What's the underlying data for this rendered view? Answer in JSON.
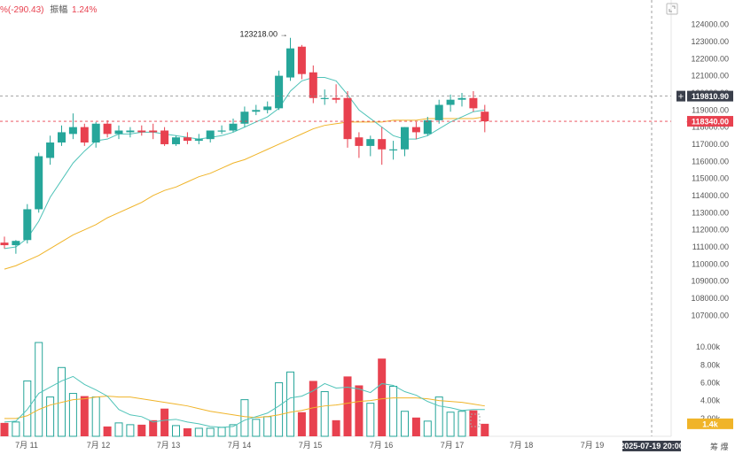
{
  "header": {
    "change": "%(-290.43)",
    "amplitude_label": "振幅",
    "amplitude": "1.24%"
  },
  "annotations": {
    "high_label": "123218.00 →"
  },
  "crosshair": {
    "price_label": "119810.90",
    "time_label": "2025-07-19 20:00"
  },
  "current_price_label": "118340.00",
  "volume_now_label": "1.4k",
  "chips_label": "筹 爆",
  "colors": {
    "up": "#26a69a",
    "down": "#e8414f",
    "ma_fast": "#4fc3b8",
    "ma_slow": "#f0b429"
  },
  "chart_data": {
    "type": "candlestick",
    "y_ticks": [
      "124000.00",
      "123000.00",
      "122000.00",
      "121000.00",
      "120000.00",
      "119000.00",
      "118000.00",
      "117000.00",
      "116000.00",
      "115000.00",
      "114000.00",
      "113000.00",
      "112000.00",
      "111000.00",
      "110000.00",
      "109000.00",
      "108000.00",
      "107000.00"
    ],
    "x_ticks": [
      "7月 11",
      "7月 12",
      "7月 13",
      "7月 14",
      "7月 15",
      "7月 16",
      "7月 17",
      "7月 18",
      "7月 19"
    ],
    "volume_ticks": [
      "10.00k",
      "8.00k",
      "6.00k",
      "4.00k",
      "2.00k"
    ],
    "ylim": [
      106500,
      124600
    ],
    "volume_ylim": [
      0,
      10800
    ],
    "candles": [
      {
        "o": 111250,
        "h": 111600,
        "l": 110900,
        "c": 111100,
        "v": 1500
      },
      {
        "o": 111100,
        "h": 111400,
        "l": 110600,
        "c": 111350,
        "v": 1600
      },
      {
        "o": 111400,
        "h": 113500,
        "l": 111200,
        "c": 113200,
        "v": 6200
      },
      {
        "o": 113200,
        "h": 116500,
        "l": 113000,
        "c": 116300,
        "v": 10500
      },
      {
        "o": 116200,
        "h": 117500,
        "l": 115800,
        "c": 117100,
        "v": 4400
      },
      {
        "o": 117100,
        "h": 118100,
        "l": 116900,
        "c": 117700,
        "v": 7700
      },
      {
        "o": 117600,
        "h": 118800,
        "l": 117300,
        "c": 118000,
        "v": 4800
      },
      {
        "o": 118000,
        "h": 118200,
        "l": 116900,
        "c": 117100,
        "v": 4500
      },
      {
        "o": 117100,
        "h": 118300,
        "l": 116800,
        "c": 118200,
        "v": 4400
      },
      {
        "o": 118200,
        "h": 118400,
        "l": 117400,
        "c": 117600,
        "v": 1100
      },
      {
        "o": 117600,
        "h": 118100,
        "l": 117300,
        "c": 117800,
        "v": 1500
      },
      {
        "o": 117700,
        "h": 118000,
        "l": 117400,
        "c": 117800,
        "v": 1300
      },
      {
        "o": 117800,
        "h": 118100,
        "l": 117500,
        "c": 117700,
        "v": 1300
      },
      {
        "o": 117800,
        "h": 118200,
        "l": 117300,
        "c": 117700,
        "v": 1800
      },
      {
        "o": 117800,
        "h": 118000,
        "l": 116900,
        "c": 117000,
        "v": 3100
      },
      {
        "o": 117000,
        "h": 117500,
        "l": 116900,
        "c": 117400,
        "v": 1200
      },
      {
        "o": 117400,
        "h": 117700,
        "l": 117000,
        "c": 117200,
        "v": 900
      },
      {
        "o": 117200,
        "h": 117600,
        "l": 117000,
        "c": 117300,
        "v": 900
      },
      {
        "o": 117300,
        "h": 117800,
        "l": 117100,
        "c": 117800,
        "v": 900
      },
      {
        "o": 117800,
        "h": 118100,
        "l": 117600,
        "c": 117800,
        "v": 1000
      },
      {
        "o": 117800,
        "h": 118500,
        "l": 117700,
        "c": 118200,
        "v": 1300
      },
      {
        "o": 118200,
        "h": 119200,
        "l": 118000,
        "c": 118900,
        "v": 4100
      },
      {
        "o": 118900,
        "h": 119300,
        "l": 118700,
        "c": 119000,
        "v": 1900
      },
      {
        "o": 119000,
        "h": 119500,
        "l": 118800,
        "c": 119200,
        "v": 2200
      },
      {
        "o": 119100,
        "h": 121300,
        "l": 119000,
        "c": 121000,
        "v": 6000
      },
      {
        "o": 120900,
        "h": 123218,
        "l": 120700,
        "c": 122600,
        "v": 7200
      },
      {
        "o": 122700,
        "h": 122800,
        "l": 120800,
        "c": 121100,
        "v": 2700
      },
      {
        "o": 121200,
        "h": 121600,
        "l": 119400,
        "c": 119700,
        "v": 6200
      },
      {
        "o": 119700,
        "h": 120200,
        "l": 119300,
        "c": 119700,
        "v": 5000
      },
      {
        "o": 119700,
        "h": 120500,
        "l": 119400,
        "c": 119600,
        "v": 1800
      },
      {
        "o": 119700,
        "h": 120100,
        "l": 116800,
        "c": 117300,
        "v": 6700
      },
      {
        "o": 117400,
        "h": 117700,
        "l": 116200,
        "c": 116900,
        "v": 5700
      },
      {
        "o": 116900,
        "h": 117500,
        "l": 116300,
        "c": 117300,
        "v": 3700
      },
      {
        "o": 117300,
        "h": 118000,
        "l": 115800,
        "c": 116700,
        "v": 8700
      },
      {
        "o": 116700,
        "h": 117200,
        "l": 116100,
        "c": 116700,
        "v": 5600
      },
      {
        "o": 116700,
        "h": 118000,
        "l": 116300,
        "c": 118000,
        "v": 2800
      },
      {
        "o": 118000,
        "h": 118300,
        "l": 117300,
        "c": 117700,
        "v": 2100
      },
      {
        "o": 117600,
        "h": 118600,
        "l": 117500,
        "c": 118400,
        "v": 1700
      },
      {
        "o": 118400,
        "h": 119600,
        "l": 118200,
        "c": 119300,
        "v": 4400
      },
      {
        "o": 119300,
        "h": 119900,
        "l": 118900,
        "c": 119600,
        "v": 2700
      },
      {
        "o": 119600,
        "h": 120000,
        "l": 119200,
        "c": 119700,
        "v": 2800
      },
      {
        "o": 119700,
        "h": 120100,
        "l": 118900,
        "c": 119100,
        "v": 2900
      },
      {
        "o": 118900,
        "h": 119300,
        "l": 117700,
        "c": 118340,
        "v": 1400
      }
    ],
    "ma_fast": [
      110900,
      111000,
      111500,
      112500,
      113900,
      114900,
      115900,
      116600,
      117200,
      117300,
      117600,
      117600,
      117700,
      117700,
      117600,
      117500,
      117400,
      117300,
      117400,
      117500,
      117700,
      118000,
      118300,
      118600,
      119100,
      120100,
      120700,
      120900,
      120900,
      120700,
      119900,
      119000,
      118500,
      118000,
      117500,
      117300,
      117300,
      117500,
      117900,
      118300,
      118600,
      118900,
      119000
    ],
    "ma_slow": [
      109700,
      109900,
      110200,
      110500,
      110900,
      111300,
      111700,
      112000,
      112300,
      112700,
      113000,
      113300,
      113600,
      114000,
      114300,
      114500,
      114800,
      115100,
      115300,
      115600,
      115900,
      116100,
      116400,
      116700,
      117000,
      117300,
      117600,
      117900,
      118100,
      118200,
      118300,
      118300,
      118300,
      118300,
      118400,
      118400,
      118400,
      118500,
      118500,
      118500,
      118500,
      118500,
      118600
    ],
    "vol_ma_fast": [
      1600,
      1700,
      3000,
      4800,
      5500,
      6200,
      6700,
      5800,
      5200,
      4500,
      3000,
      2400,
      2200,
      1600,
      1800,
      1900,
      1600,
      1400,
      1100,
      1000,
      1100,
      1800,
      2200,
      2600,
      3400,
      4300,
      4500,
      5100,
      5900,
      5400,
      5500,
      5300,
      4900,
      5900,
      5700,
      5000,
      4600,
      3900,
      3400,
      3200,
      2900,
      3000,
      3000
    ],
    "vol_ma_slow": [
      2000,
      2000,
      2300,
      3000,
      3500,
      3800,
      4100,
      4200,
      4400,
      4500,
      4400,
      4400,
      4200,
      4000,
      3800,
      3600,
      3400,
      3100,
      2800,
      2600,
      2400,
      2200,
      2100,
      2200,
      2400,
      2700,
      2900,
      3200,
      3400,
      3500,
      3700,
      3900,
      4000,
      4200,
      4300,
      4300,
      4300,
      4200,
      4000,
      3900,
      3800,
      3600,
      3400
    ]
  }
}
